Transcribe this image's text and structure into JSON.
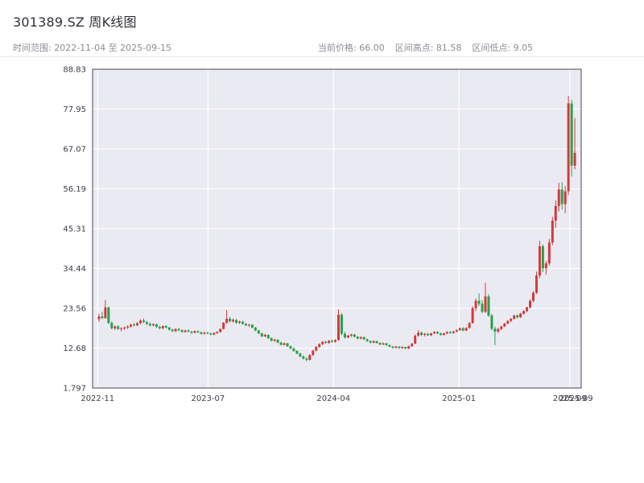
{
  "header": {
    "title": "301389.SZ 周K线图",
    "date_range_label": "时间范围: 2022-11-04 至 2025-09-15",
    "stats": {
      "current": "当前价格: 66.00",
      "high": "区间高点: 81.58",
      "low": "区间低点: 9.05"
    }
  },
  "chart_data": {
    "type": "candlestick",
    "title": "301389.SZ 周K线图",
    "symbol": "301389.SZ",
    "period": "weekly",
    "start_date": "2022-11-04",
    "end_date": "2025-09-15",
    "current_price": 66.0,
    "range_high": 81.58,
    "range_low": 9.05,
    "ylim": [
      1.797,
      88.83
    ],
    "y_ticks": [
      {
        "label": "88.83",
        "value": 88.83
      },
      {
        "label": "77.95",
        "value": 77.95
      },
      {
        "label": "67.07",
        "value": 67.07
      },
      {
        "label": "56.19",
        "value": 56.19
      },
      {
        "label": "45.31",
        "value": 45.31
      },
      {
        "label": "34.44",
        "value": 34.44
      },
      {
        "label": "23.56",
        "value": 23.56
      },
      {
        "label": "12.68",
        "value": 12.68
      },
      {
        "label": "1.797",
        "value": 1.797
      }
    ],
    "x_ticks": [
      {
        "label": "2022-11",
        "date": "2022-11-01"
      },
      {
        "label": "2023-07",
        "date": "2023-07-01"
      },
      {
        "label": "2024-04",
        "date": "2024-04-01"
      },
      {
        "label": "2025-01",
        "date": "2025-01-01"
      },
      {
        "label": "2025-09",
        "date": "2025-09-01"
      }
    ],
    "extra_x_tick": {
      "label": "2025-09",
      "date": "2025-09-15"
    },
    "grid": true,
    "legend": false,
    "plot_bg": "#eaeaf2",
    "grid_color": "#ffffff",
    "up_color": "#d23a3a",
    "down_color": "#2b9e4a",
    "dates": [
      "2022-11-04",
      "2022-11-11",
      "2022-11-18",
      "2022-11-25",
      "2022-12-02",
      "2022-12-09",
      "2022-12-16",
      "2022-12-23",
      "2022-12-30",
      "2023-01-06",
      "2023-01-13",
      "2023-01-20",
      "2023-01-27",
      "2023-02-03",
      "2023-02-10",
      "2023-02-17",
      "2023-02-24",
      "2023-03-03",
      "2023-03-10",
      "2023-03-17",
      "2023-03-24",
      "2023-03-31",
      "2023-04-07",
      "2023-04-14",
      "2023-04-21",
      "2023-04-28",
      "2023-05-05",
      "2023-05-12",
      "2023-05-19",
      "2023-05-26",
      "2023-06-02",
      "2023-06-09",
      "2023-06-16",
      "2023-06-23",
      "2023-06-30",
      "2023-07-07",
      "2023-07-14",
      "2023-07-21",
      "2023-07-28",
      "2023-08-04",
      "2023-08-11",
      "2023-08-18",
      "2023-08-25",
      "2023-09-01",
      "2023-09-08",
      "2023-09-15",
      "2023-09-22",
      "2023-09-29",
      "2023-10-06",
      "2023-10-13",
      "2023-10-20",
      "2023-10-27",
      "2023-11-03",
      "2023-11-10",
      "2023-11-17",
      "2023-11-24",
      "2023-12-01",
      "2023-12-08",
      "2023-12-15",
      "2023-12-22",
      "2023-12-29",
      "2024-01-05",
      "2024-01-12",
      "2024-01-19",
      "2024-01-26",
      "2024-02-02",
      "2024-02-09",
      "2024-02-16",
      "2024-02-23",
      "2024-03-01",
      "2024-03-08",
      "2024-03-15",
      "2024-03-22",
      "2024-03-29",
      "2024-04-05",
      "2024-04-12",
      "2024-04-19",
      "2024-04-26",
      "2024-05-03",
      "2024-05-10",
      "2024-05-17",
      "2024-05-24",
      "2024-05-31",
      "2024-06-07",
      "2024-06-14",
      "2024-06-21",
      "2024-06-28",
      "2024-07-05",
      "2024-07-12",
      "2024-07-19",
      "2024-07-26",
      "2024-08-02",
      "2024-08-09",
      "2024-08-16",
      "2024-08-23",
      "2024-08-30",
      "2024-09-06",
      "2024-09-13",
      "2024-09-20",
      "2024-09-27",
      "2024-10-04",
      "2024-10-11",
      "2024-10-18",
      "2024-10-25",
      "2024-11-01",
      "2024-11-08",
      "2024-11-15",
      "2024-11-22",
      "2024-11-29",
      "2024-12-06",
      "2024-12-13",
      "2024-12-20",
      "2024-12-27",
      "2025-01-03",
      "2025-01-10",
      "2025-01-17",
      "2025-01-24",
      "2025-02-07",
      "2025-02-14",
      "2025-02-21",
      "2025-02-28",
      "2025-03-07",
      "2025-03-14",
      "2025-03-21",
      "2025-03-28",
      "2025-04-03",
      "2025-04-11",
      "2025-04-18",
      "2025-04-25",
      "2025-04-30",
      "2025-05-09",
      "2025-05-16",
      "2025-05-23",
      "2025-05-30",
      "2025-06-06",
      "2025-06-13",
      "2025-06-20",
      "2025-06-27",
      "2025-07-04",
      "2025-07-11",
      "2025-07-18",
      "2025-07-25",
      "2025-08-01",
      "2025-08-08",
      "2025-08-15",
      "2025-08-22",
      "2025-08-29",
      "2025-09-05",
      "2025-09-12",
      "2025-09-15"
    ],
    "ohlc": [
      [
        20.6,
        22.1,
        19.9,
        21.3
      ],
      [
        21.3,
        22.6,
        20.6,
        20.9
      ],
      [
        20.9,
        25.8,
        20.7,
        23.8
      ],
      [
        23.8,
        24.0,
        19.2,
        19.6
      ],
      [
        19.6,
        20.0,
        17.8,
        18.1
      ],
      [
        18.1,
        18.9,
        17.6,
        18.6
      ],
      [
        18.6,
        19.0,
        17.7,
        17.9
      ],
      [
        17.9,
        18.4,
        17.3,
        18.1
      ],
      [
        18.1,
        18.6,
        17.6,
        18.3
      ],
      [
        18.3,
        18.9,
        17.9,
        18.6
      ],
      [
        18.6,
        19.4,
        18.3,
        19.1
      ],
      [
        19.1,
        19.6,
        18.6,
        18.9
      ],
      [
        18.9,
        19.8,
        18.7,
        19.5
      ],
      [
        19.5,
        20.6,
        19.2,
        20.2
      ],
      [
        20.2,
        20.8,
        19.5,
        19.8
      ],
      [
        19.8,
        20.1,
        19.0,
        19.3
      ],
      [
        19.3,
        19.7,
        18.6,
        18.9
      ],
      [
        18.9,
        19.5,
        18.6,
        19.2
      ],
      [
        19.2,
        19.4,
        18.2,
        18.5
      ],
      [
        18.5,
        18.8,
        17.8,
        18.1
      ],
      [
        18.1,
        18.9,
        17.9,
        18.7
      ],
      [
        18.7,
        19.0,
        18.1,
        18.3
      ],
      [
        18.3,
        18.5,
        17.5,
        17.7
      ],
      [
        17.7,
        18.0,
        17.1,
        17.3
      ],
      [
        17.3,
        18.1,
        17.1,
        17.9
      ],
      [
        17.9,
        18.2,
        17.3,
        17.6
      ],
      [
        17.6,
        17.8,
        16.9,
        17.1
      ],
      [
        17.1,
        17.7,
        16.9,
        17.5
      ],
      [
        17.5,
        17.8,
        17.0,
        17.2
      ],
      [
        17.2,
        17.4,
        16.6,
        16.9
      ],
      [
        16.9,
        17.5,
        16.7,
        17.3
      ],
      [
        17.3,
        17.5,
        16.8,
        17.0
      ],
      [
        17.0,
        17.2,
        16.4,
        16.6
      ],
      [
        16.6,
        17.1,
        16.4,
        16.9
      ],
      [
        16.9,
        17.1,
        16.5,
        16.7
      ],
      [
        16.7,
        16.9,
        16.2,
        16.4
      ],
      [
        16.4,
        17.0,
        16.2,
        16.8
      ],
      [
        16.8,
        17.3,
        16.6,
        17.1
      ],
      [
        17.1,
        18.1,
        16.9,
        17.9
      ],
      [
        17.9,
        19.8,
        17.8,
        19.6
      ],
      [
        19.6,
        23.1,
        19.3,
        20.7
      ],
      [
        20.7,
        21.2,
        19.7,
        20.0
      ],
      [
        20.0,
        20.8,
        19.7,
        20.4
      ],
      [
        20.4,
        20.6,
        19.3,
        19.6
      ],
      [
        19.6,
        20.2,
        19.3,
        19.9
      ],
      [
        19.9,
        20.1,
        19.1,
        19.3
      ],
      [
        19.3,
        19.6,
        18.7,
        18.9
      ],
      [
        18.9,
        19.3,
        18.5,
        19.1
      ],
      [
        19.1,
        19.2,
        18.1,
        18.3
      ],
      [
        18.3,
        18.5,
        17.3,
        17.5
      ],
      [
        17.5,
        17.7,
        16.5,
        16.7
      ],
      [
        16.7,
        16.9,
        15.7,
        15.9
      ],
      [
        15.9,
        16.6,
        15.7,
        16.3
      ],
      [
        16.3,
        16.4,
        15.2,
        15.4
      ],
      [
        15.4,
        15.6,
        14.5,
        14.7
      ],
      [
        14.7,
        15.3,
        14.4,
        15.0
      ],
      [
        15.0,
        15.1,
        14.0,
        14.2
      ],
      [
        14.2,
        14.4,
        13.4,
        13.6
      ],
      [
        13.6,
        14.2,
        13.4,
        14.0
      ],
      [
        14.0,
        14.1,
        13.0,
        13.2
      ],
      [
        13.2,
        13.4,
        12.4,
        12.6
      ],
      [
        12.6,
        12.8,
        11.7,
        11.9
      ],
      [
        11.9,
        12.1,
        11.0,
        11.2
      ],
      [
        11.2,
        11.4,
        10.2,
        10.4
      ],
      [
        10.4,
        10.7,
        9.6,
        9.8
      ],
      [
        9.8,
        10.2,
        9.05,
        9.5
      ],
      [
        9.5,
        11.0,
        9.3,
        10.8
      ],
      [
        10.8,
        12.2,
        10.6,
        12.0
      ],
      [
        12.0,
        13.3,
        11.8,
        13.0
      ],
      [
        13.0,
        14.0,
        12.8,
        13.8
      ],
      [
        13.8,
        14.6,
        13.5,
        14.4
      ],
      [
        14.4,
        14.7,
        13.9,
        14.1
      ],
      [
        14.1,
        14.9,
        13.9,
        14.7
      ],
      [
        14.7,
        15.0,
        14.2,
        14.4
      ],
      [
        14.4,
        15.1,
        14.2,
        14.9
      ],
      [
        14.9,
        23.3,
        14.7,
        21.8
      ],
      [
        21.8,
        22.3,
        16.2,
        16.6
      ],
      [
        16.6,
        17.1,
        15.3,
        15.6
      ],
      [
        15.6,
        16.3,
        15.4,
        16.1
      ],
      [
        16.1,
        16.6,
        15.7,
        16.4
      ],
      [
        16.4,
        16.6,
        15.6,
        15.8
      ],
      [
        15.8,
        16.0,
        15.1,
        15.3
      ],
      [
        15.3,
        15.9,
        15.1,
        15.7
      ],
      [
        15.7,
        15.8,
        14.9,
        15.1
      ],
      [
        15.1,
        15.3,
        14.4,
        14.6
      ],
      [
        14.6,
        14.8,
        14.0,
        14.2
      ],
      [
        14.2,
        14.8,
        14.0,
        14.6
      ],
      [
        14.6,
        14.7,
        13.9,
        14.1
      ],
      [
        14.1,
        14.3,
        13.5,
        13.7
      ],
      [
        13.7,
        14.2,
        13.5,
        14.0
      ],
      [
        14.0,
        14.1,
        13.3,
        13.5
      ],
      [
        13.5,
        13.7,
        12.9,
        13.1
      ],
      [
        13.1,
        13.3,
        12.6,
        12.8
      ],
      [
        12.8,
        13.3,
        12.6,
        13.1
      ],
      [
        13.1,
        13.2,
        12.5,
        12.7
      ],
      [
        12.7,
        13.2,
        12.5,
        13.0
      ],
      [
        13.0,
        13.1,
        12.4,
        12.6
      ],
      [
        12.6,
        13.4,
        12.4,
        13.2
      ],
      [
        13.2,
        14.1,
        13.0,
        13.9
      ],
      [
        13.9,
        16.4,
        13.8,
        16.1
      ],
      [
        16.1,
        17.6,
        15.8,
        16.9
      ],
      [
        16.9,
        17.2,
        16.0,
        16.3
      ],
      [
        16.3,
        16.8,
        15.9,
        16.6
      ],
      [
        16.6,
        16.8,
        16.0,
        16.2
      ],
      [
        16.2,
        16.9,
        16.0,
        16.7
      ],
      [
        16.7,
        17.3,
        16.5,
        17.1
      ],
      [
        17.1,
        17.3,
        16.5,
        16.7
      ],
      [
        16.7,
        16.9,
        16.1,
        16.3
      ],
      [
        16.3,
        16.9,
        16.1,
        16.7
      ],
      [
        16.7,
        17.3,
        16.5,
        17.1
      ],
      [
        17.1,
        17.3,
        16.6,
        16.8
      ],
      [
        16.8,
        17.4,
        16.6,
        17.2
      ],
      [
        17.2,
        17.8,
        17.0,
        17.6
      ],
      [
        17.6,
        18.3,
        17.4,
        18.1
      ],
      [
        18.1,
        18.4,
        17.3,
        17.5
      ],
      [
        17.5,
        18.4,
        17.3,
        18.2
      ],
      [
        18.2,
        19.8,
        18.0,
        19.5
      ],
      [
        19.5,
        24.1,
        19.4,
        23.6
      ],
      [
        23.6,
        26.2,
        22.8,
        25.6
      ],
      [
        25.6,
        27.6,
        24.2,
        24.8
      ],
      [
        24.8,
        25.8,
        22.2,
        22.6
      ],
      [
        22.6,
        30.5,
        22.3,
        26.8
      ],
      [
        26.8,
        27.4,
        21.2,
        21.6
      ],
      [
        21.6,
        22.1,
        17.6,
        18.0
      ],
      [
        18.0,
        18.6,
        13.5,
        17.2
      ],
      [
        17.2,
        18.2,
        16.8,
        17.9
      ],
      [
        17.9,
        18.8,
        17.6,
        18.6
      ],
      [
        18.6,
        19.6,
        18.4,
        19.4
      ],
      [
        19.4,
        20.3,
        19.2,
        20.1
      ],
      [
        20.1,
        20.9,
        19.8,
        20.7
      ],
      [
        20.7,
        21.8,
        20.5,
        21.6
      ],
      [
        21.6,
        21.9,
        20.8,
        21.1
      ],
      [
        21.1,
        22.3,
        20.9,
        22.1
      ],
      [
        22.1,
        23.0,
        21.8,
        22.8
      ],
      [
        22.8,
        24.0,
        22.5,
        23.8
      ],
      [
        23.8,
        26.0,
        23.5,
        25.6
      ],
      [
        25.6,
        28.2,
        25.2,
        27.8
      ],
      [
        27.8,
        33.6,
        27.5,
        32.5
      ],
      [
        32.5,
        42.0,
        31.8,
        40.5
      ],
      [
        40.5,
        41.0,
        33.5,
        34.5
      ],
      [
        34.5,
        36.5,
        32.8,
        35.8
      ],
      [
        35.8,
        42.5,
        35.2,
        41.5
      ],
      [
        41.5,
        48.5,
        40.8,
        47.5
      ],
      [
        47.5,
        53.0,
        45.5,
        51.5
      ],
      [
        51.5,
        57.8,
        50.0,
        56.0
      ],
      [
        56.0,
        58.0,
        50.5,
        52.0
      ],
      [
        52.0,
        57.0,
        49.5,
        55.5
      ],
      [
        55.5,
        81.58,
        54.5,
        79.5
      ],
      [
        79.5,
        80.5,
        59.5,
        62.5
      ],
      [
        62.5,
        75.5,
        61.5,
        66.0
      ]
    ]
  }
}
